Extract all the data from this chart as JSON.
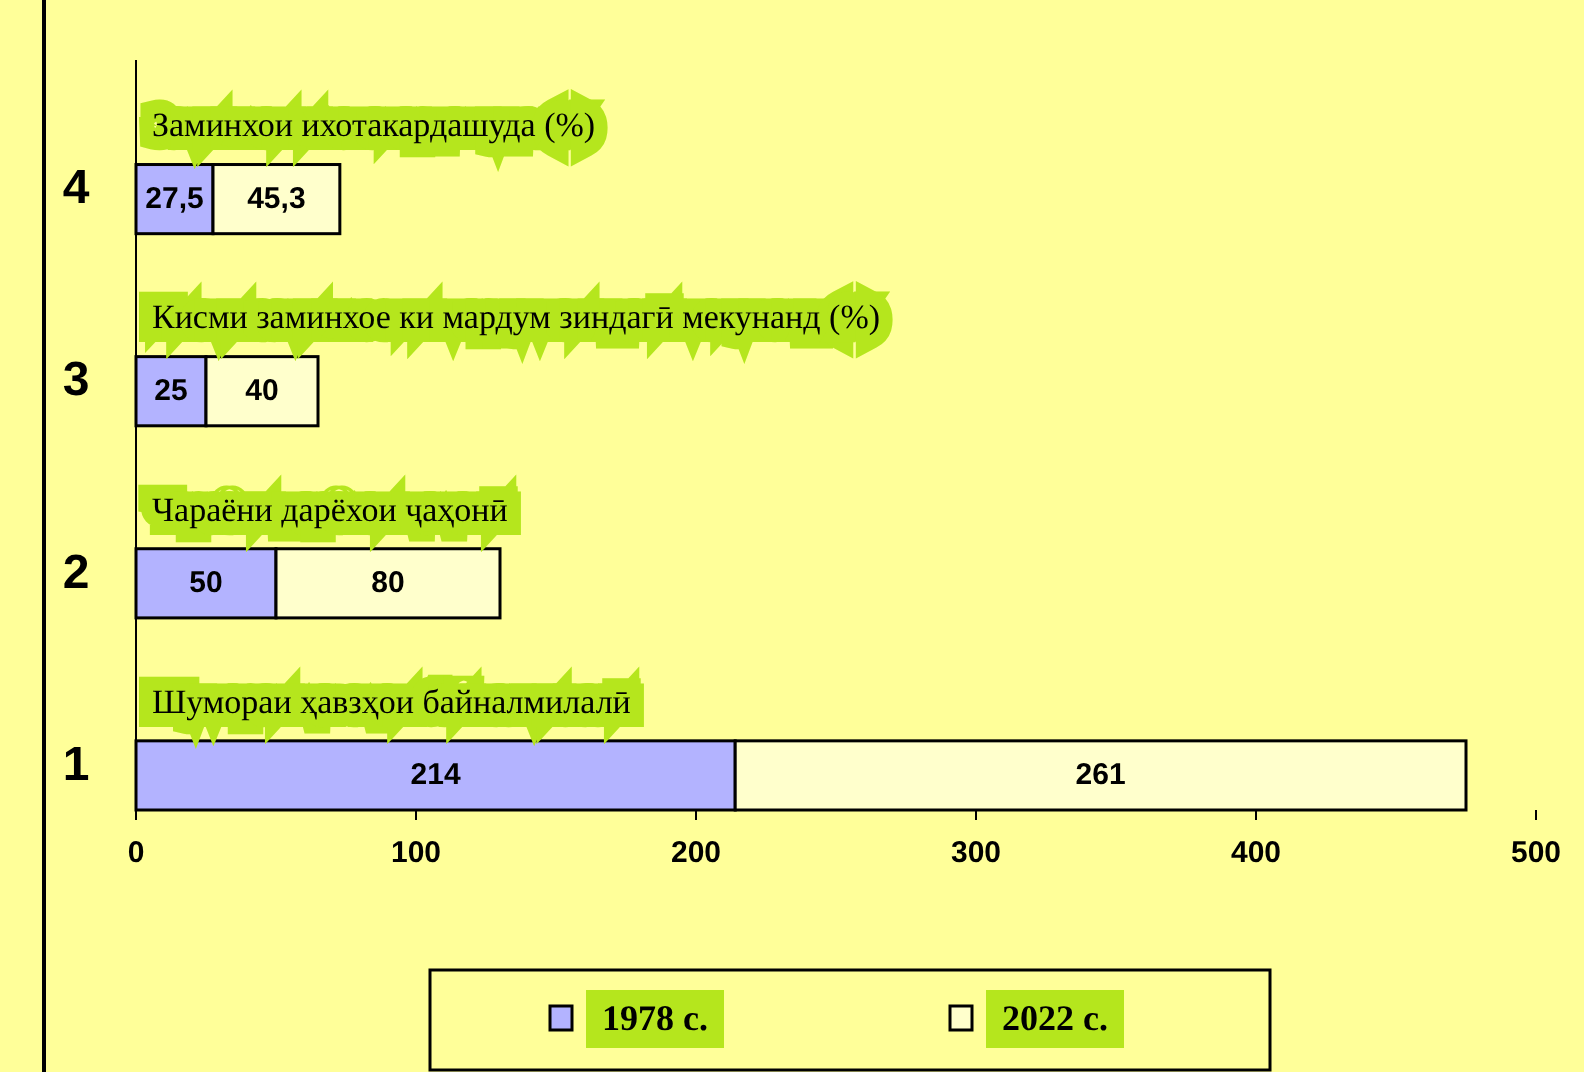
{
  "chart_data": {
    "type": "bar",
    "orientation": "horizontal",
    "stacked": true,
    "categories": [
      "4",
      "3",
      "2",
      "1"
    ],
    "series": [
      {
        "name": "1978 с.",
        "color": "#b3b3ff",
        "values": [
          27.5,
          25,
          50,
          214
        ],
        "value_labels": [
          "27,5",
          "25",
          "50",
          "214"
        ]
      },
      {
        "name": "2022 с.",
        "color": "#ffffcc",
        "values": [
          45.3,
          40,
          80,
          261
        ],
        "value_labels": [
          "45,3",
          "40",
          "80",
          "261"
        ]
      }
    ],
    "xlim": [
      0,
      500
    ],
    "xticks": [
      0,
      100,
      200,
      300,
      400,
      500
    ],
    "annotations": [
      "Заминхои ихотакардашуда (%)",
      "Кисми заминхое ки мардум зиндагӣ мекунанд (%)",
      "Чараёни дарёхои ҷаҳонӣ",
      "Шумораи ҳавзҳои байналмилалӣ"
    ],
    "grid": false,
    "legend": "bottom"
  }
}
